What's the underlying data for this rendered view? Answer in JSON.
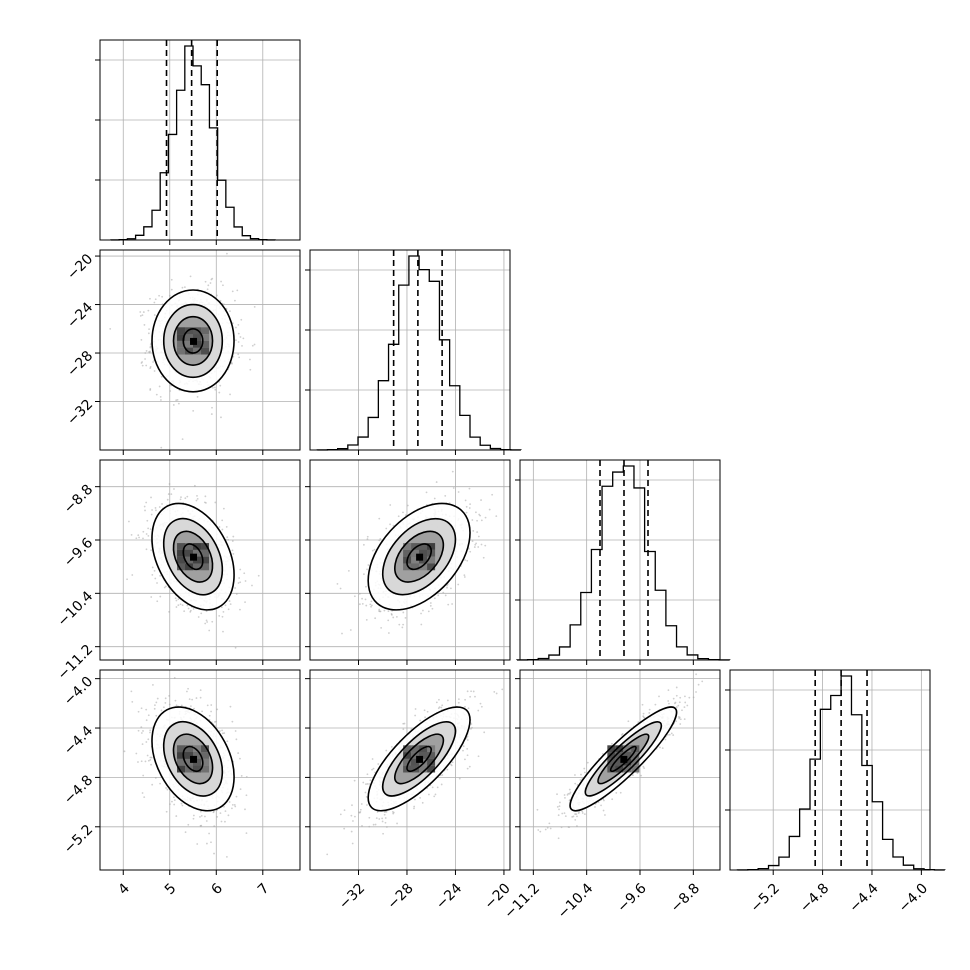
{
  "chart_data": {
    "type": "corner",
    "parameters": [
      {
        "range": [
          3.5,
          7.8
        ],
        "ticks": [
          4,
          5,
          6,
          7
        ],
        "tick_labels": [
          "4",
          "5",
          "6",
          "7"
        ],
        "center": 5.5,
        "sigma": 0.42,
        "quantiles": [
          4.93,
          5.47,
          6.02
        ]
      },
      {
        "range": [
          -36,
          -19.5
        ],
        "ticks": [
          -32,
          -28,
          -24,
          -20
        ],
        "tick_labels": [
          "−32",
          "−28",
          "−24",
          "−20"
        ],
        "center": -27.0,
        "sigma": 2.0,
        "quantiles": [
          -29.1,
          -27.1,
          -25.1
        ]
      },
      {
        "range": [
          -11.4,
          -8.4
        ],
        "ticks": [
          -11.2,
          -10.4,
          -9.6,
          -8.8
        ],
        "tick_labels": [
          "−11.2",
          "−10.4",
          "−9.6",
          "−8.8"
        ],
        "center": -9.85,
        "sigma": 0.38,
        "quantiles": [
          -10.2,
          -9.84,
          -9.48
        ]
      },
      {
        "range": [
          -5.55,
          -3.93
        ],
        "ticks": [
          -5.2,
          -4.8,
          -4.4,
          -4.0
        ],
        "tick_labels": [
          "−5.2",
          "−4.8",
          "−4.4",
          "−4.0"
        ],
        "center": -4.65,
        "sigma": 0.2,
        "quantiles": [
          -4.86,
          -4.65,
          -4.44
        ]
      }
    ],
    "correlations": {
      "1-0": 0.0,
      "2-0": -0.35,
      "2-1": 0.45,
      "3-0": -0.35,
      "3-1": 0.75,
      "3-2": 0.9
    },
    "grid": true,
    "quantile_line_style": "dashed",
    "contour_levels": 4
  }
}
